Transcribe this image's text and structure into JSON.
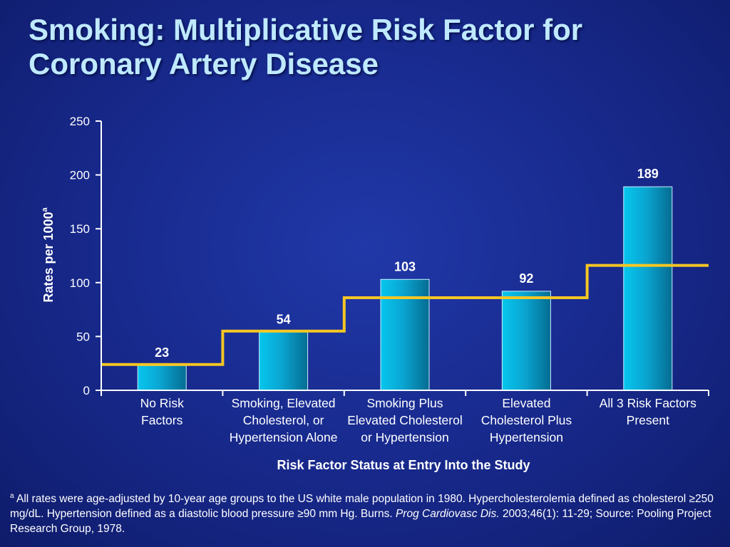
{
  "slide": {
    "title": "Smoking: Multiplicative Risk Factor for Coronary Artery Disease"
  },
  "chart_data": {
    "type": "bar",
    "title": "",
    "xlabel": "Risk Factor Status at Entry Into the Study",
    "ylabel": "Rates per 1000",
    "ylabel_sup": "a",
    "ylim": [
      0,
      250
    ],
    "yticks": [
      0,
      50,
      100,
      150,
      200,
      250
    ],
    "grid": false,
    "categories": [
      [
        "No Risk",
        "Factors"
      ],
      [
        "Smoking, Elevated",
        "Cholesterol, or",
        "Hypertension Alone"
      ],
      [
        "Smoking Plus",
        "Elevated Cholesterol",
        "or Hypertension"
      ],
      [
        "Elevated",
        "Cholesterol Plus",
        "Hypertension"
      ],
      [
        "All 3 Risk Factors",
        "Present"
      ]
    ],
    "values": [
      23,
      54,
      103,
      92,
      189
    ],
    "data_labels": [
      "23",
      "54",
      "103",
      "92",
      "189"
    ],
    "step_line": [
      24,
      55,
      86,
      86,
      116
    ],
    "colors": {
      "bar_top": "#06c6ee",
      "bar_mid": "#0aa6d2",
      "bar_dark": "#056c92",
      "bar_edge": "#c9f2ff",
      "step_line": "#f5c623",
      "axis": "#ffffff"
    }
  },
  "footnote": {
    "sup": "a",
    "text1": " All rates were age-adjusted by 10-year age groups to the US white male population in 1980. Hypercholesterolemia defined as cholesterol ≥250 mg/dL. Hypertension defined as a diastolic blood pressure ≥90 mm Hg. Burns. ",
    "journal": "Prog Cardiovasc Dis.",
    "text2": " 2003;46(1): 11-29; Source: Pooling Project Research Group, 1978."
  }
}
